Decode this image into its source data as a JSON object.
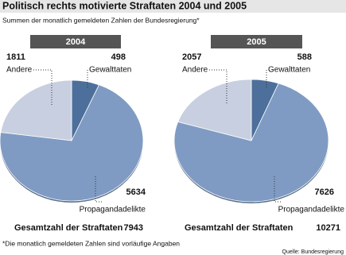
{
  "title": "Politisch rechts motivierte Straftaten 2004 und 2005",
  "subtitle": "Summen der monatlich gemeldeten Zahlen der Bundesregierung*",
  "note": "*Die monatlich gemeldeten Zahlen sind vorläufige Angaben",
  "source": "Quelle: Bundesregierung",
  "chart_data": [
    {
      "type": "pie",
      "title": "2004",
      "categories": [
        "Gewalttaten",
        "Propagandadelikte",
        "Andere"
      ],
      "values": [
        498,
        5634,
        1811
      ],
      "colors": [
        "#4d6f9b",
        "#7f9bc3",
        "#c8cfe0"
      ],
      "total_label": "Gesamtzahl der Straftaten",
      "total": 7943
    },
    {
      "type": "pie",
      "title": "2005",
      "categories": [
        "Gewalttaten",
        "Propagandadelikte",
        "Andere"
      ],
      "values": [
        588,
        7626,
        2057
      ],
      "colors": [
        "#4d6f9b",
        "#7f9bc3",
        "#c8cfe0"
      ],
      "total_label": "Gesamtzahl der Straftaten",
      "total": 10271
    }
  ]
}
